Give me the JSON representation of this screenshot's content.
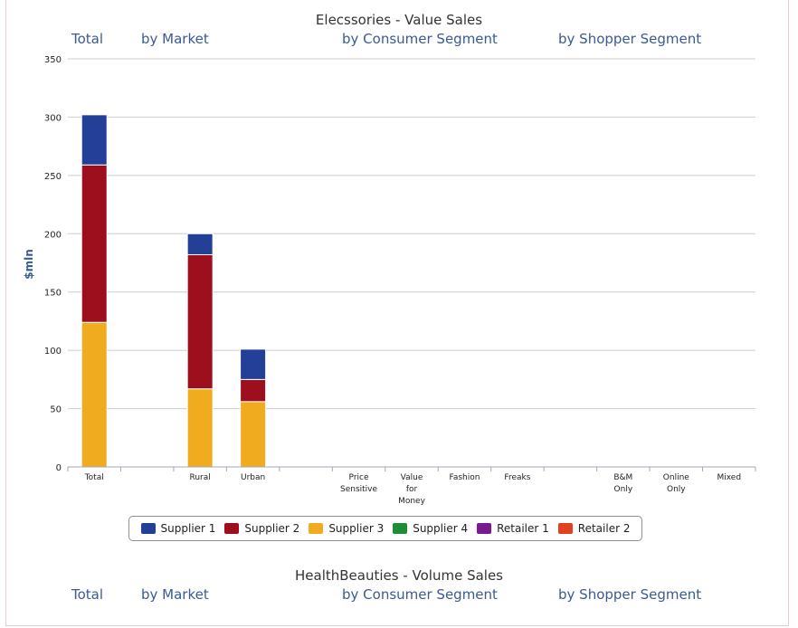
{
  "chart_data": [
    {
      "type": "bar",
      "stacked": true,
      "title": "Elecssories - Value Sales",
      "ylabel": "$mln",
      "ylim": [
        0,
        350
      ],
      "yticks": [
        "0",
        "50",
        "100",
        "150",
        "200",
        "250",
        "300",
        "350"
      ],
      "grid": true,
      "legend_position": "bottom-center",
      "group_labels": [
        "Total",
        "by Market",
        "by Consumer Segment",
        "by Shopper Segment"
      ],
      "categories": [
        "Total",
        "",
        "Rural",
        "Urban",
        "",
        "Price Sensitive",
        "Value for Money",
        "Fashion",
        "Freaks",
        "",
        "B&M Only",
        "Online Only",
        "Mixed"
      ],
      "series": [
        {
          "name": "Supplier 1",
          "color": "#233f98",
          "values": [
            43,
            0,
            18,
            26,
            0,
            0,
            0,
            0,
            0,
            0,
            0,
            0,
            0
          ]
        },
        {
          "name": "Supplier 2",
          "color": "#9d0f1c",
          "values": [
            135,
            0,
            115,
            19,
            0,
            0,
            0,
            0,
            0,
            0,
            0,
            0,
            0
          ]
        },
        {
          "name": "Supplier 3",
          "color": "#f0ac1e",
          "values": [
            124,
            0,
            67,
            56,
            0,
            0,
            0,
            0,
            0,
            0,
            0,
            0,
            0
          ]
        },
        {
          "name": "Supplier 4",
          "color": "#218c36",
          "values": [
            0,
            0,
            0,
            0,
            0,
            0,
            0,
            0,
            0,
            0,
            0,
            0,
            0
          ]
        },
        {
          "name": "Retailer 1",
          "color": "#7b1a8c",
          "values": [
            0,
            0,
            0,
            0,
            0,
            0,
            0,
            0,
            0,
            0,
            0,
            0,
            0
          ]
        },
        {
          "name": "Retailer 2",
          "color": "#e2411f",
          "values": [
            0,
            0,
            0,
            0,
            0,
            0,
            0,
            0,
            0,
            0,
            0,
            0,
            0
          ]
        }
      ]
    },
    {
      "type": "bar",
      "title": "HealthBeauties - Volume Sales",
      "group_labels": [
        "Total",
        "by Market",
        "by Consumer Segment",
        "by Shopper Segment"
      ]
    }
  ]
}
